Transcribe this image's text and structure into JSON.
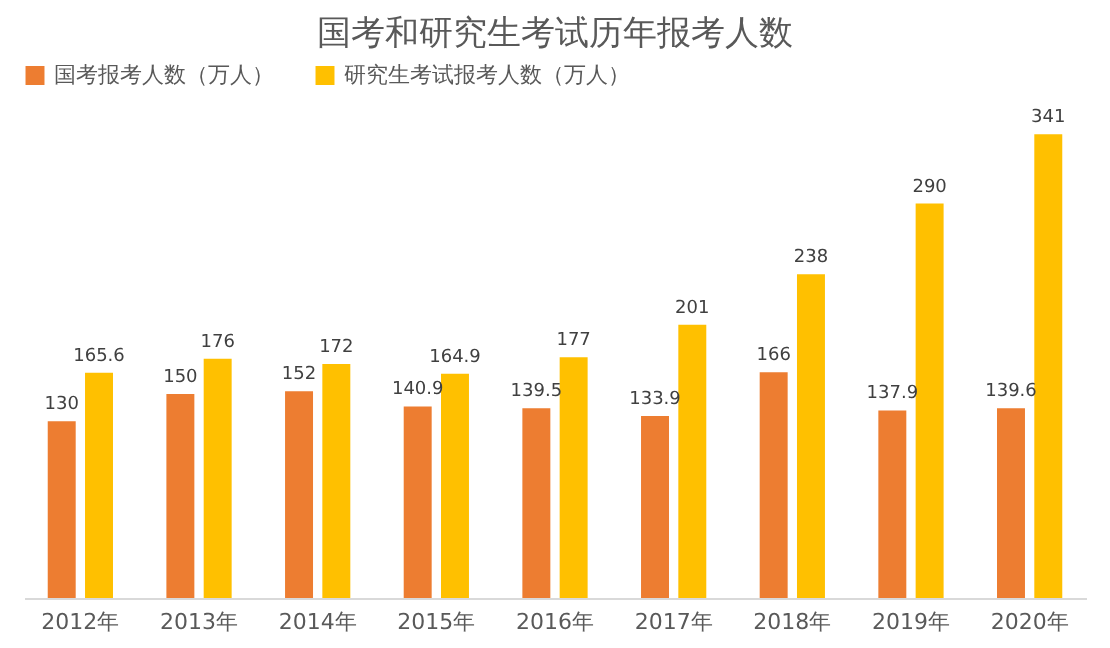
{
  "chart_data": {
    "type": "bar",
    "title": "国考和研究生考试历年报考人数",
    "categories": [
      "2012年",
      "2013年",
      "2014年",
      "2015年",
      "2016年",
      "2017年",
      "2018年",
      "2019年",
      "2020年"
    ],
    "series": [
      {
        "name": "国考报考人数（万人）",
        "color": "#ed7d31",
        "values": [
          130,
          150,
          152,
          140.9,
          139.5,
          133.9,
          166,
          137.9,
          139.6
        ]
      },
      {
        "name": "研究生考试报考人数（万人）",
        "color": "#ffc000",
        "values": [
          165.6,
          176,
          172,
          164.9,
          177,
          201,
          238,
          290,
          341
        ]
      }
    ],
    "data_labels": true,
    "legend": "top"
  }
}
